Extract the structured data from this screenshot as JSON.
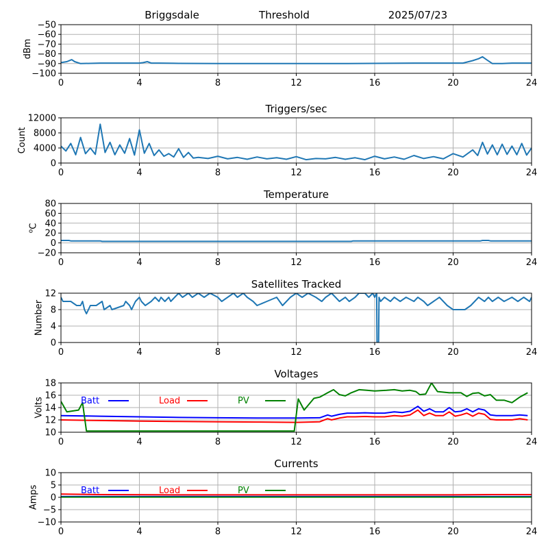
{
  "header": {
    "site": "Briggsdale",
    "mode": "Threshold",
    "date": "2025/07/23"
  },
  "chart_data": [
    {
      "type": "line",
      "title": "",
      "xlabel": "",
      "ylabel": "dBm",
      "xlim": [
        0,
        24
      ],
      "ylim": [
        -100,
        -50
      ],
      "xticks": [
        0,
        4,
        8,
        12,
        16,
        20,
        24
      ],
      "yticks": [
        -100,
        -90,
        -80,
        -70,
        -60,
        -50
      ],
      "grid": true,
      "series": [
        {
          "color": "#1f77b4",
          "x": [
            0,
            0.3,
            0.55,
            0.7,
            1,
            2,
            3,
            4,
            4.2,
            4.4,
            4.6,
            5,
            6,
            8,
            10,
            12,
            14,
            16,
            18,
            20,
            20.5,
            21,
            21.3,
            21.5,
            21.7,
            22,
            22.5,
            23,
            24
          ],
          "y": [
            -89,
            -88,
            -86,
            -88,
            -90,
            -89.5,
            -89.5,
            -89.5,
            -89,
            -88,
            -89.5,
            -89.5,
            -89.8,
            -90,
            -90,
            -90,
            -90,
            -89.8,
            -89.5,
            -89.5,
            -89.5,
            -87,
            -85,
            -83,
            -86,
            -90,
            -90,
            -89.5,
            -89.5
          ]
        }
      ]
    },
    {
      "type": "line",
      "title": "Triggers/sec",
      "xlabel": "",
      "ylabel": "Count",
      "xlim": [
        0,
        24
      ],
      "ylim": [
        0,
        12000
      ],
      "xticks": [
        0,
        4,
        8,
        12,
        16,
        20,
        24
      ],
      "yticks": [
        0,
        4000,
        8000,
        12000
      ],
      "grid": true,
      "series": [
        {
          "color": "#1f77b4",
          "x": [
            0,
            0.25,
            0.5,
            0.75,
            1,
            1.25,
            1.5,
            1.75,
            2,
            2.25,
            2.5,
            2.75,
            3,
            3.25,
            3.5,
            3.75,
            4,
            4.25,
            4.5,
            4.75,
            5,
            5.25,
            5.5,
            5.75,
            6,
            6.25,
            6.5,
            6.75,
            7,
            7.5,
            8,
            8.5,
            9,
            9.5,
            10,
            10.5,
            11,
            11.5,
            12,
            12.5,
            13,
            13.5,
            14,
            14.5,
            15,
            15.5,
            16,
            16.5,
            17,
            17.5,
            18,
            18.5,
            19,
            19.5,
            20,
            20.5,
            21,
            21.25,
            21.5,
            21.75,
            22,
            22.25,
            22.5,
            22.75,
            23,
            23.25,
            23.5,
            23.75,
            24
          ],
          "y": [
            4500,
            3200,
            5200,
            2200,
            6800,
            2500,
            4000,
            2300,
            10300,
            2800,
            5500,
            2200,
            4800,
            2600,
            6500,
            2100,
            8800,
            2600,
            5200,
            2000,
            3500,
            1800,
            2500,
            1600,
            3800,
            1500,
            2800,
            1300,
            1500,
            1200,
            1800,
            1100,
            1500,
            1000,
            1600,
            1100,
            1400,
            1000,
            1700,
            900,
            1200,
            1100,
            1500,
            1000,
            1400,
            900,
            1800,
            1100,
            1600,
            1000,
            2000,
            1200,
            1700,
            1100,
            2500,
            1600,
            3500,
            2000,
            5500,
            2400,
            4800,
            2200,
            5000,
            2300,
            4500,
            2200,
            5200,
            2100,
            4000
          ]
        }
      ]
    },
    {
      "type": "line",
      "title": "Temperature",
      "xlabel": "",
      "ylabel": "°C",
      "ylabel_main": "C",
      "ylabel_sup": "o",
      "xlim": [
        0,
        24
      ],
      "ylim": [
        -20,
        80
      ],
      "xticks": [
        0,
        4,
        8,
        12,
        16,
        20,
        24
      ],
      "yticks": [
        -20,
        0,
        20,
        40,
        60,
        80
      ],
      "grid": true,
      "series": [
        {
          "color": "#1f77b4",
          "x": [
            0,
            0.4,
            0.5,
            2,
            2.1,
            14.8,
            14.9,
            21.4,
            21.5,
            21.8,
            21.9,
            24
          ],
          "y": [
            5,
            5,
            4,
            4,
            3,
            3,
            4,
            4,
            5,
            5,
            4,
            4
          ]
        }
      ]
    },
    {
      "type": "line",
      "title": "Satellites Tracked",
      "xlabel": "",
      "ylabel": "Number",
      "xlim": [
        0,
        24
      ],
      "ylim": [
        0,
        12
      ],
      "xticks": [
        0,
        4,
        8,
        12,
        16,
        20,
        24
      ],
      "yticks": [
        0,
        4,
        8,
        12
      ],
      "grid": true,
      "series": [
        {
          "color": "#1f77b4",
          "x": [
            0,
            0.1,
            0.5,
            0.8,
            1,
            1.1,
            1.2,
            1.3,
            1.4,
            1.5,
            1.8,
            2.1,
            2.2,
            2.5,
            2.6,
            3.2,
            3.3,
            3.5,
            3.6,
            3.7,
            3.8,
            4,
            4.1,
            4.3,
            4.6,
            4.8,
            5,
            5.1,
            5.3,
            5.5,
            5.6,
            5.8,
            6,
            6.2,
            6.5,
            6.7,
            7,
            7.3,
            7.6,
            8,
            8.2,
            8.5,
            8.8,
            9,
            9.3,
            9.5,
            9.8,
            10,
            10.5,
            11,
            11.3,
            11.5,
            11.7,
            12,
            12.3,
            12.6,
            13,
            13.3,
            13.5,
            13.8,
            14,
            14.2,
            14.5,
            14.7,
            15,
            15.2,
            15.3,
            15.5,
            15.7,
            15.9,
            16,
            16.1,
            16.12,
            16.2,
            16.22,
            16.3,
            16.5,
            16.8,
            17,
            17.3,
            17.6,
            18,
            18.2,
            18.5,
            18.7,
            19,
            19.3,
            19.5,
            19.7,
            20,
            20.3,
            20.6,
            20.9,
            21.1,
            21.3,
            21.6,
            21.8,
            22,
            22.3,
            22.6,
            23,
            23.3,
            23.6,
            23.9,
            24
          ],
          "y": [
            11,
            10,
            10,
            9,
            9,
            10,
            8,
            7,
            8,
            9,
            9,
            10,
            8,
            9,
            8,
            9,
            10,
            9,
            8,
            9,
            10,
            11,
            10,
            9,
            10,
            11,
            10,
            11,
            10,
            11,
            10,
            11,
            12,
            11,
            12,
            11,
            12,
            11,
            12,
            11,
            10,
            11,
            12,
            11,
            12,
            11,
            10,
            9,
            10,
            11,
            9,
            10,
            11,
            12,
            11,
            12,
            11,
            10,
            11,
            12,
            11,
            10,
            11,
            10,
            11,
            12,
            12,
            12,
            11,
            12,
            11,
            12,
            0,
            0,
            11,
            10,
            11,
            10,
            11,
            10,
            11,
            10,
            11,
            10,
            9,
            10,
            11,
            10,
            9,
            8,
            8,
            8,
            9,
            10,
            11,
            10,
            11,
            10,
            11,
            10,
            11,
            10,
            11,
            10,
            11
          ]
        }
      ]
    },
    {
      "type": "line",
      "title": "Voltages",
      "xlabel": "",
      "ylabel": "Volts",
      "xlim": [
        0,
        24
      ],
      "ylim": [
        10,
        18
      ],
      "xticks": [
        0,
        4,
        8,
        12,
        16,
        20,
        24
      ],
      "yticks": [
        10,
        12,
        14,
        16,
        18
      ],
      "grid": true,
      "legend": "top-left",
      "series": [
        {
          "name": "Batt",
          "color": "#0000ff",
          "x": [
            0,
            2,
            4,
            6,
            8,
            10,
            12,
            13.2,
            13.6,
            13.8,
            14.2,
            14.6,
            15,
            15.5,
            16,
            16.5,
            17,
            17.4,
            17.8,
            18.2,
            18.5,
            18.8,
            19.1,
            19.5,
            19.8,
            20.1,
            20.4,
            20.7,
            21,
            21.3,
            21.6,
            21.9,
            22.2,
            22.6,
            23,
            23.4,
            23.8
          ],
          "y": [
            12.7,
            12.6,
            12.5,
            12.4,
            12.35,
            12.3,
            12.3,
            12.35,
            12.8,
            12.6,
            12.9,
            13.1,
            13.1,
            13.15,
            13.1,
            13.1,
            13.3,
            13.2,
            13.4,
            14.2,
            13.4,
            13.8,
            13.3,
            13.3,
            14.0,
            13.3,
            13.4,
            13.8,
            13.3,
            13.8,
            13.6,
            12.8,
            12.7,
            12.7,
            12.7,
            12.8,
            12.7
          ]
        },
        {
          "name": "Load",
          "color": "#ff0000",
          "x": [
            0,
            2,
            4,
            6,
            8,
            10,
            12,
            13.2,
            13.6,
            13.8,
            14.2,
            14.6,
            15,
            15.5,
            16,
            16.5,
            17,
            17.4,
            17.8,
            18.2,
            18.5,
            18.8,
            19.1,
            19.5,
            19.8,
            20.1,
            20.4,
            20.7,
            21,
            21.3,
            21.6,
            21.9,
            22.2,
            22.6,
            23,
            23.4,
            23.8
          ],
          "y": [
            12.0,
            11.9,
            11.8,
            11.75,
            11.7,
            11.65,
            11.6,
            11.7,
            12.2,
            12.0,
            12.3,
            12.5,
            12.5,
            12.55,
            12.5,
            12.5,
            12.7,
            12.6,
            12.8,
            13.6,
            12.7,
            13.1,
            12.7,
            12.7,
            13.3,
            12.6,
            12.8,
            13.1,
            12.6,
            13.1,
            12.9,
            12.1,
            12.0,
            12.0,
            12.0,
            12.2,
            12.0
          ]
        },
        {
          "name": "PV",
          "color": "#008000",
          "x": [
            0,
            0.3,
            0.7,
            0.9,
            1.0,
            1.1,
            1.3,
            11.9,
            12.1,
            12.4,
            12.9,
            13.2,
            13.6,
            13.9,
            14.2,
            14.5,
            14.8,
            15.2,
            15.6,
            16,
            16.6,
            17,
            17.4,
            17.8,
            18.1,
            18.3,
            18.6,
            18.9,
            19.2,
            19.5,
            19.8,
            20.1,
            20.4,
            20.7,
            21,
            21.3,
            21.6,
            21.9,
            22.2,
            22.6,
            23,
            23.4,
            23.8
          ],
          "y": [
            15,
            13.3,
            13.5,
            13.6,
            14.2,
            14.8,
            10.2,
            10.2,
            15.4,
            13.6,
            15.5,
            15.7,
            16.4,
            16.9,
            16.1,
            15.9,
            16.4,
            16.9,
            16.8,
            16.7,
            16.8,
            16.9,
            16.7,
            16.8,
            16.6,
            16.1,
            16.2,
            18.0,
            16.6,
            16.5,
            16.4,
            16.4,
            16.4,
            15.8,
            16.3,
            16.4,
            15.9,
            16.1,
            15.2,
            15.2,
            14.8,
            15.7,
            16.4
          ]
        }
      ]
    },
    {
      "type": "line",
      "title": "Currents",
      "xlabel": "",
      "ylabel": "Amps",
      "xlim": [
        0,
        24
      ],
      "ylim": [
        -10,
        10
      ],
      "xticks": [
        0,
        4,
        8,
        12,
        16,
        20,
        24
      ],
      "yticks": [
        -10,
        -5,
        0,
        5,
        10
      ],
      "grid": true,
      "legend": "top-left",
      "series": [
        {
          "name": "Batt",
          "color": "#0000ff",
          "x": [
            0,
            24
          ],
          "y": [
            0.3,
            0.3
          ]
        },
        {
          "name": "Load",
          "color": "#ff0000",
          "x": [
            0,
            2,
            6,
            12,
            18,
            20,
            22,
            24
          ],
          "y": [
            1.3,
            1.1,
            1.0,
            1.0,
            1.0,
            1.0,
            1.1,
            1.1
          ]
        },
        {
          "name": "PV",
          "color": "#008000",
          "x": [
            0,
            24
          ],
          "y": [
            0.1,
            0.1
          ]
        }
      ]
    }
  ]
}
